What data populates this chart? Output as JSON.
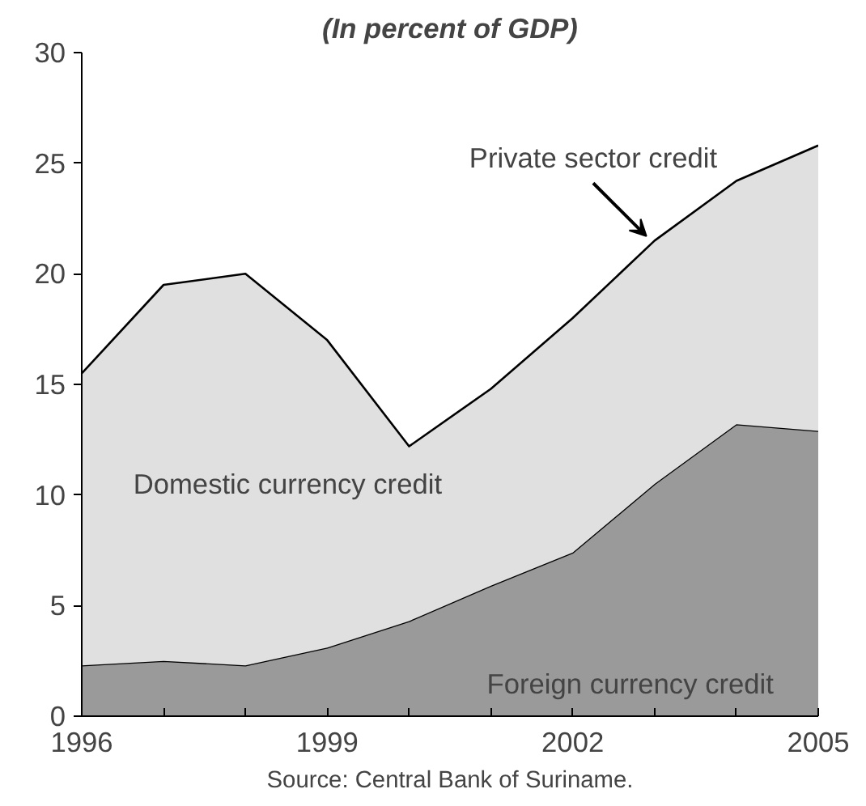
{
  "chart_data": {
    "type": "area",
    "stacked": true,
    "title": "(In percent of GDP)",
    "x": [
      1996,
      1997,
      1998,
      1999,
      2000,
      2001,
      2002,
      2003,
      2004,
      2005
    ],
    "series": [
      {
        "name": "Foreign currency credit",
        "color": "#9a9a9a",
        "values": [
          2.3,
          2.5,
          2.3,
          3.1,
          4.3,
          5.9,
          7.4,
          10.5,
          13.2,
          12.9
        ]
      },
      {
        "name": "Domestic currency credit",
        "color": "#e0e0e0",
        "values": [
          13.2,
          17.0,
          17.7,
          13.9,
          7.9,
          8.9,
          10.6,
          11.0,
          11.0,
          12.9
        ]
      }
    ],
    "xlim": [
      1996,
      2005
    ],
    "xticks": [
      1996,
      {
        "value": 1997,
        "label": null
      },
      {
        "value": 1998,
        "label": null
      },
      1999,
      {
        "value": 2000,
        "label": null
      },
      {
        "value": 2001,
        "label": null
      },
      2002,
      {
        "value": 2003,
        "label": null
      },
      {
        "value": 2004,
        "label": null
      },
      2005
    ],
    "ylim": [
      0,
      30
    ],
    "yticks": [
      0,
      5,
      10,
      15,
      20,
      25,
      30
    ],
    "grid": false,
    "annotations": [
      {
        "text": "Private sector credit",
        "x": 2003,
        "y": 21.5
      },
      "Source: Central Bank of Suriname."
    ]
  }
}
